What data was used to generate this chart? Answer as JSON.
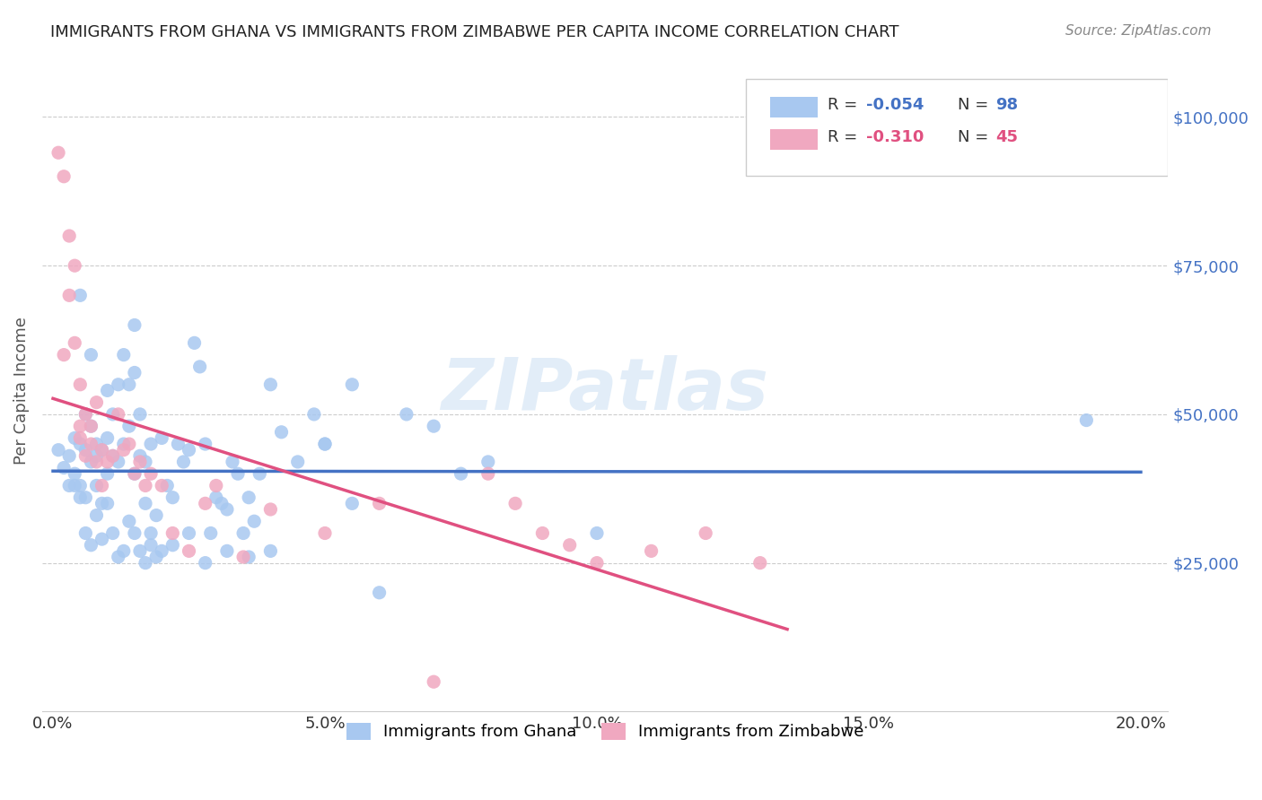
{
  "title": "IMMIGRANTS FROM GHANA VS IMMIGRANTS FROM ZIMBABWE PER CAPITA INCOME CORRELATION CHART",
  "source": "Source: ZipAtlas.com",
  "ylabel": "Per Capita Income",
  "xlabel_ticks": [
    "0.0%",
    "5.0%",
    "10.0%",
    "15.0%",
    "20.0%"
  ],
  "xlabel_vals": [
    0.0,
    0.05,
    0.1,
    0.15,
    0.2
  ],
  "ytick_labels": [
    "$25,000",
    "$50,000",
    "$75,000",
    "$100,000"
  ],
  "ytick_vals": [
    25000,
    50000,
    75000,
    100000
  ],
  "ylim": [
    0,
    108000
  ],
  "xlim": [
    -0.002,
    0.205
  ],
  "ghana_color": "#a8c8f0",
  "zimbabwe_color": "#f0a8c0",
  "ghana_line_color": "#4472c4",
  "zimbabwe_line_color": "#e05080",
  "ghana_R": -0.054,
  "ghana_N": 98,
  "zimbabwe_R": -0.31,
  "zimbabwe_N": 45,
  "ghana_scatter_x": [
    0.001,
    0.002,
    0.003,
    0.003,
    0.004,
    0.004,
    0.005,
    0.005,
    0.005,
    0.006,
    0.006,
    0.006,
    0.007,
    0.007,
    0.007,
    0.008,
    0.008,
    0.008,
    0.009,
    0.009,
    0.01,
    0.01,
    0.01,
    0.011,
    0.011,
    0.012,
    0.012,
    0.013,
    0.013,
    0.014,
    0.014,
    0.015,
    0.015,
    0.016,
    0.016,
    0.017,
    0.017,
    0.018,
    0.018,
    0.019,
    0.02,
    0.021,
    0.022,
    0.023,
    0.024,
    0.025,
    0.026,
    0.027,
    0.028,
    0.029,
    0.03,
    0.031,
    0.032,
    0.033,
    0.034,
    0.035,
    0.036,
    0.037,
    0.038,
    0.04,
    0.042,
    0.045,
    0.048,
    0.05,
    0.055,
    0.06,
    0.065,
    0.07,
    0.075,
    0.08,
    0.004,
    0.005,
    0.006,
    0.007,
    0.008,
    0.009,
    0.01,
    0.011,
    0.012,
    0.013,
    0.014,
    0.015,
    0.016,
    0.017,
    0.018,
    0.019,
    0.02,
    0.022,
    0.025,
    0.028,
    0.032,
    0.036,
    0.04,
    0.05,
    0.055,
    0.1,
    0.19,
    0.015
  ],
  "ghana_scatter_y": [
    44000,
    41000,
    43000,
    38000,
    46000,
    40000,
    70000,
    45000,
    38000,
    44000,
    36000,
    50000,
    48000,
    42000,
    60000,
    43000,
    38000,
    45000,
    44000,
    35000,
    46000,
    40000,
    54000,
    43000,
    50000,
    55000,
    42000,
    60000,
    45000,
    55000,
    48000,
    57000,
    40000,
    50000,
    43000,
    35000,
    42000,
    30000,
    45000,
    33000,
    46000,
    38000,
    36000,
    45000,
    42000,
    44000,
    62000,
    58000,
    45000,
    30000,
    36000,
    35000,
    34000,
    42000,
    40000,
    30000,
    36000,
    32000,
    40000,
    55000,
    47000,
    42000,
    50000,
    45000,
    55000,
    20000,
    50000,
    48000,
    40000,
    42000,
    38000,
    36000,
    30000,
    28000,
    33000,
    29000,
    35000,
    30000,
    26000,
    27000,
    32000,
    30000,
    27000,
    25000,
    28000,
    26000,
    27000,
    28000,
    30000,
    25000,
    27000,
    26000,
    27000,
    45000,
    35000,
    30000,
    49000,
    65000
  ],
  "zimbabwe_scatter_x": [
    0.001,
    0.002,
    0.002,
    0.003,
    0.003,
    0.004,
    0.004,
    0.005,
    0.005,
    0.006,
    0.007,
    0.008,
    0.009,
    0.01,
    0.011,
    0.012,
    0.013,
    0.014,
    0.015,
    0.016,
    0.017,
    0.018,
    0.02,
    0.022,
    0.025,
    0.028,
    0.03,
    0.035,
    0.04,
    0.05,
    0.06,
    0.07,
    0.08,
    0.085,
    0.09,
    0.095,
    0.1,
    0.11,
    0.12,
    0.13,
    0.005,
    0.006,
    0.007,
    0.008,
    0.009
  ],
  "zimbabwe_scatter_y": [
    94000,
    90000,
    60000,
    80000,
    70000,
    75000,
    62000,
    55000,
    48000,
    50000,
    45000,
    52000,
    44000,
    42000,
    43000,
    50000,
    44000,
    45000,
    40000,
    42000,
    38000,
    40000,
    38000,
    30000,
    27000,
    35000,
    38000,
    26000,
    34000,
    30000,
    35000,
    5000,
    40000,
    35000,
    30000,
    28000,
    25000,
    27000,
    30000,
    25000,
    46000,
    43000,
    48000,
    42000,
    38000
  ],
  "watermark": "ZIPatlas",
  "grid_color": "#cccccc",
  "background_color": "#ffffff",
  "title_color": "#222222",
  "axis_label_color": "#555555",
  "ytick_color": "#4472c4",
  "xtick_color": "#333333"
}
